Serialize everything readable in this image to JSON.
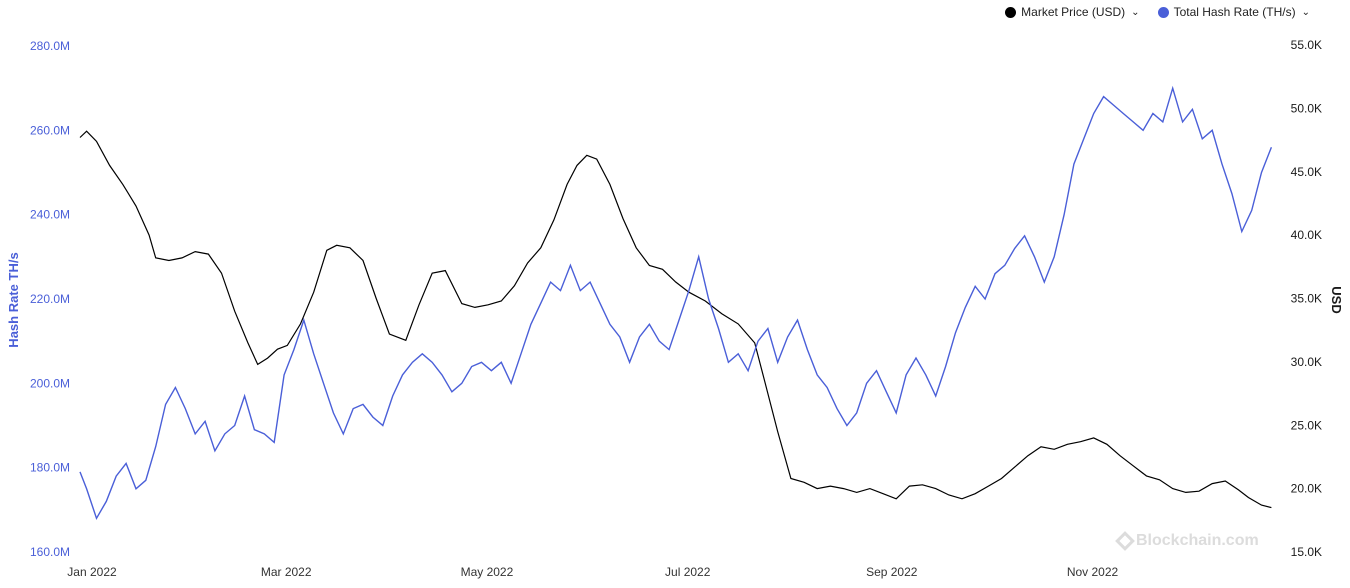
{
  "legend": {
    "price_label": "Market Price (USD)",
    "hash_label": "Total Hash Rate (TH/s)",
    "chevron": "⌄"
  },
  "watermark": "Blockchain.com",
  "colors": {
    "price": "#000000",
    "hash": "#4a5fd8"
  },
  "chart_data": {
    "type": "line",
    "xlabel": "",
    "x_ticks": [
      "Jan 2022",
      "Mar 2022",
      "May 2022",
      "Jul 2022",
      "Sep 2022",
      "Nov 2022"
    ],
    "x_range": [
      "2022-01-01",
      "2022-12-31"
    ],
    "y_left": {
      "label": "Hash Rate TH/s",
      "unit_suffix": "M",
      "ticks": [
        "160.0M",
        "180.0M",
        "200.0M",
        "220.0M",
        "240.0M",
        "260.0M",
        "280.0M"
      ],
      "range": [
        160,
        280
      ]
    },
    "y_right": {
      "label": "USD",
      "ticks": [
        "15.0K",
        "20.0K",
        "25.0K",
        "30.0K",
        "35.0K",
        "40.0K",
        "45.0K",
        "50.0K",
        "55.0K"
      ],
      "range": [
        15,
        55
      ]
    },
    "grid": false,
    "legend_position": "top-right",
    "series": [
      {
        "name": "Market Price (USD)",
        "axis": "right",
        "points": [
          [
            "2022-01-01",
            47.7
          ],
          [
            "2022-01-03",
            48.2
          ],
          [
            "2022-01-06",
            47.4
          ],
          [
            "2022-01-10",
            45.5
          ],
          [
            "2022-01-14",
            44.0
          ],
          [
            "2022-01-18",
            42.3
          ],
          [
            "2022-01-22",
            40.0
          ],
          [
            "2022-01-24",
            38.2
          ],
          [
            "2022-01-28",
            38.0
          ],
          [
            "2022-02-01",
            38.2
          ],
          [
            "2022-02-05",
            38.7
          ],
          [
            "2022-02-09",
            38.5
          ],
          [
            "2022-02-13",
            37.0
          ],
          [
            "2022-02-17",
            34.0
          ],
          [
            "2022-02-21",
            31.5
          ],
          [
            "2022-02-24",
            29.8
          ],
          [
            "2022-02-27",
            30.3
          ],
          [
            "2022-03-02",
            31.0
          ],
          [
            "2022-03-05",
            31.3
          ],
          [
            "2022-03-09",
            33.0
          ],
          [
            "2022-03-13",
            35.5
          ],
          [
            "2022-03-17",
            38.8
          ],
          [
            "2022-03-20",
            39.2
          ],
          [
            "2022-03-24",
            39.0
          ],
          [
            "2022-03-28",
            38.0
          ],
          [
            "2022-04-01",
            35.0
          ],
          [
            "2022-04-05",
            32.2
          ],
          [
            "2022-04-10",
            31.7
          ],
          [
            "2022-04-14",
            34.5
          ],
          [
            "2022-04-18",
            37.0
          ],
          [
            "2022-04-22",
            37.2
          ],
          [
            "2022-04-27",
            34.6
          ],
          [
            "2022-05-01",
            34.3
          ],
          [
            "2022-05-05",
            34.5
          ],
          [
            "2022-05-09",
            34.8
          ],
          [
            "2022-05-13",
            36.0
          ],
          [
            "2022-05-17",
            37.8
          ],
          [
            "2022-05-21",
            39.0
          ],
          [
            "2022-05-25",
            41.2
          ],
          [
            "2022-05-29",
            44.0
          ],
          [
            "2022-06-01",
            45.5
          ],
          [
            "2022-06-04",
            46.3
          ],
          [
            "2022-06-07",
            46.0
          ],
          [
            "2022-06-11",
            44.0
          ],
          [
            "2022-06-15",
            41.3
          ],
          [
            "2022-06-19",
            39.0
          ],
          [
            "2022-06-23",
            37.6
          ],
          [
            "2022-06-27",
            37.3
          ],
          [
            "2022-07-01",
            36.3
          ],
          [
            "2022-07-05",
            35.5
          ],
          [
            "2022-07-10",
            34.8
          ],
          [
            "2022-07-15",
            33.8
          ],
          [
            "2022-07-20",
            33.0
          ],
          [
            "2022-07-25",
            31.5
          ],
          [
            "2022-07-28",
            28.5
          ],
          [
            "2022-08-01",
            24.5
          ],
          [
            "2022-08-05",
            20.8
          ],
          [
            "2022-08-09",
            20.5
          ],
          [
            "2022-08-13",
            20.0
          ],
          [
            "2022-08-17",
            20.2
          ],
          [
            "2022-08-21",
            20.0
          ],
          [
            "2022-08-25",
            19.7
          ],
          [
            "2022-08-29",
            20.0
          ],
          [
            "2022-09-02",
            19.6
          ],
          [
            "2022-09-06",
            19.2
          ],
          [
            "2022-09-10",
            20.2
          ],
          [
            "2022-09-14",
            20.3
          ],
          [
            "2022-09-18",
            20.0
          ],
          [
            "2022-09-22",
            19.5
          ],
          [
            "2022-09-26",
            19.2
          ],
          [
            "2022-09-30",
            19.6
          ],
          [
            "2022-10-04",
            20.2
          ],
          [
            "2022-10-08",
            20.8
          ],
          [
            "2022-10-12",
            21.7
          ],
          [
            "2022-10-16",
            22.6
          ],
          [
            "2022-10-20",
            23.3
          ],
          [
            "2022-10-24",
            23.1
          ],
          [
            "2022-10-28",
            23.5
          ],
          [
            "2022-11-01",
            23.7
          ],
          [
            "2022-11-05",
            24.0
          ],
          [
            "2022-11-09",
            23.5
          ],
          [
            "2022-11-13",
            22.6
          ],
          [
            "2022-11-17",
            21.8
          ],
          [
            "2022-11-21",
            21.0
          ],
          [
            "2022-11-25",
            20.7
          ],
          [
            "2022-11-29",
            20.0
          ],
          [
            "2022-12-03",
            19.7
          ],
          [
            "2022-12-07",
            19.8
          ],
          [
            "2022-12-11",
            20.4
          ],
          [
            "2022-12-15",
            20.6
          ],
          [
            "2022-12-19",
            19.9
          ],
          [
            "2022-12-22",
            19.3
          ],
          [
            "2022-12-26",
            18.7
          ],
          [
            "2022-12-29",
            18.5
          ]
        ]
      },
      {
        "name": "Total Hash Rate (TH/s)",
        "axis": "left",
        "points": [
          [
            "2022-01-01",
            179
          ],
          [
            "2022-01-03",
            175
          ],
          [
            "2022-01-06",
            168
          ],
          [
            "2022-01-09",
            172
          ],
          [
            "2022-01-12",
            178
          ],
          [
            "2022-01-15",
            181
          ],
          [
            "2022-01-18",
            175
          ],
          [
            "2022-01-21",
            177
          ],
          [
            "2022-01-24",
            185
          ],
          [
            "2022-01-27",
            195
          ],
          [
            "2022-01-30",
            199
          ],
          [
            "2022-02-02",
            194
          ],
          [
            "2022-02-05",
            188
          ],
          [
            "2022-02-08",
            191
          ],
          [
            "2022-02-11",
            184
          ],
          [
            "2022-02-14",
            188
          ],
          [
            "2022-02-17",
            190
          ],
          [
            "2022-02-20",
            197
          ],
          [
            "2022-02-23",
            189
          ],
          [
            "2022-02-26",
            188
          ],
          [
            "2022-03-01",
            186
          ],
          [
            "2022-03-04",
            202
          ],
          [
            "2022-03-07",
            208
          ],
          [
            "2022-03-10",
            215
          ],
          [
            "2022-03-13",
            207
          ],
          [
            "2022-03-16",
            200
          ],
          [
            "2022-03-19",
            193
          ],
          [
            "2022-03-22",
            188
          ],
          [
            "2022-03-25",
            194
          ],
          [
            "2022-03-28",
            195
          ],
          [
            "2022-03-31",
            192
          ],
          [
            "2022-04-03",
            190
          ],
          [
            "2022-04-06",
            197
          ],
          [
            "2022-04-09",
            202
          ],
          [
            "2022-04-12",
            205
          ],
          [
            "2022-04-15",
            207
          ],
          [
            "2022-04-18",
            205
          ],
          [
            "2022-04-21",
            202
          ],
          [
            "2022-04-24",
            198
          ],
          [
            "2022-04-27",
            200
          ],
          [
            "2022-04-30",
            204
          ],
          [
            "2022-05-03",
            205
          ],
          [
            "2022-05-06",
            203
          ],
          [
            "2022-05-09",
            205
          ],
          [
            "2022-05-12",
            200
          ],
          [
            "2022-05-15",
            207
          ],
          [
            "2022-05-18",
            214
          ],
          [
            "2022-05-21",
            219
          ],
          [
            "2022-05-24",
            224
          ],
          [
            "2022-05-27",
            222
          ],
          [
            "2022-05-30",
            228
          ],
          [
            "2022-06-02",
            222
          ],
          [
            "2022-06-05",
            224
          ],
          [
            "2022-06-08",
            219
          ],
          [
            "2022-06-11",
            214
          ],
          [
            "2022-06-14",
            211
          ],
          [
            "2022-06-17",
            205
          ],
          [
            "2022-06-20",
            211
          ],
          [
            "2022-06-23",
            214
          ],
          [
            "2022-06-26",
            210
          ],
          [
            "2022-06-29",
            208
          ],
          [
            "2022-07-02",
            215
          ],
          [
            "2022-07-05",
            222
          ],
          [
            "2022-07-08",
            230
          ],
          [
            "2022-07-11",
            220
          ],
          [
            "2022-07-14",
            213
          ],
          [
            "2022-07-17",
            205
          ],
          [
            "2022-07-20",
            207
          ],
          [
            "2022-07-23",
            203
          ],
          [
            "2022-07-26",
            210
          ],
          [
            "2022-07-29",
            213
          ],
          [
            "2022-08-01",
            205
          ],
          [
            "2022-08-04",
            211
          ],
          [
            "2022-08-07",
            215
          ],
          [
            "2022-08-10",
            208
          ],
          [
            "2022-08-13",
            202
          ],
          [
            "2022-08-16",
            199
          ],
          [
            "2022-08-19",
            194
          ],
          [
            "2022-08-22",
            190
          ],
          [
            "2022-08-25",
            193
          ],
          [
            "2022-08-28",
            200
          ],
          [
            "2022-08-31",
            203
          ],
          [
            "2022-09-03",
            198
          ],
          [
            "2022-09-06",
            193
          ],
          [
            "2022-09-09",
            202
          ],
          [
            "2022-09-12",
            206
          ],
          [
            "2022-09-15",
            202
          ],
          [
            "2022-09-18",
            197
          ],
          [
            "2022-09-21",
            204
          ],
          [
            "2022-09-24",
            212
          ],
          [
            "2022-09-27",
            218
          ],
          [
            "2022-09-30",
            223
          ],
          [
            "2022-10-03",
            220
          ],
          [
            "2022-10-06",
            226
          ],
          [
            "2022-10-09",
            228
          ],
          [
            "2022-10-12",
            232
          ],
          [
            "2022-10-15",
            235
          ],
          [
            "2022-10-18",
            230
          ],
          [
            "2022-10-21",
            224
          ],
          [
            "2022-10-24",
            230
          ],
          [
            "2022-10-27",
            240
          ],
          [
            "2022-10-30",
            252
          ],
          [
            "2022-11-02",
            258
          ],
          [
            "2022-11-05",
            264
          ],
          [
            "2022-11-08",
            268
          ],
          [
            "2022-11-11",
            266
          ],
          [
            "2022-11-14",
            264
          ],
          [
            "2022-11-17",
            262
          ],
          [
            "2022-11-20",
            260
          ],
          [
            "2022-11-23",
            264
          ],
          [
            "2022-11-26",
            262
          ],
          [
            "2022-11-29",
            270
          ],
          [
            "2022-12-02",
            262
          ],
          [
            "2022-12-05",
            265
          ],
          [
            "2022-12-08",
            258
          ],
          [
            "2022-12-11",
            260
          ],
          [
            "2022-12-14",
            252
          ],
          [
            "2022-12-17",
            245
          ],
          [
            "2022-12-20",
            236
          ],
          [
            "2022-12-23",
            241
          ],
          [
            "2022-12-26",
            250
          ],
          [
            "2022-12-29",
            256
          ]
        ]
      }
    ]
  }
}
